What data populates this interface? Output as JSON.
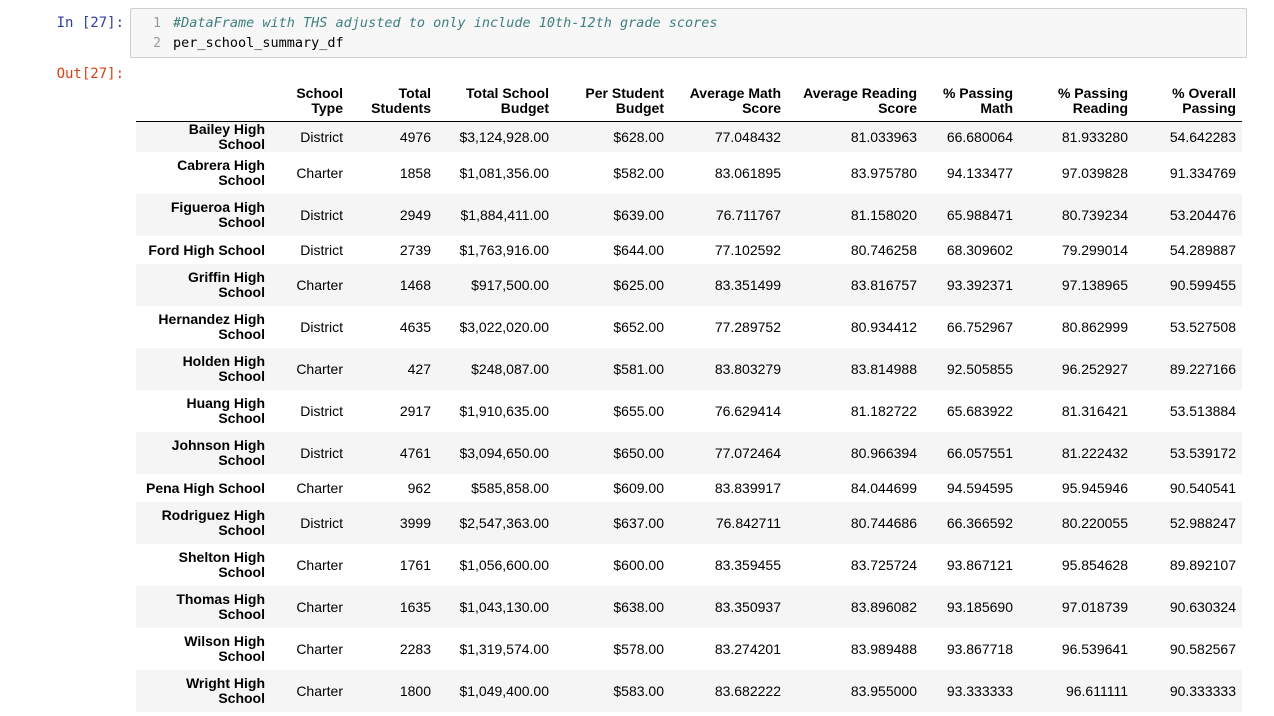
{
  "cell": {
    "in_prompt": "In [27]:",
    "out_prompt": "Out[27]:",
    "code_lines": [
      {
        "no": "1",
        "text": "#DataFrame with THS adjusted to only include 10th-12th grade scores",
        "comment": true
      },
      {
        "no": "2",
        "text": "per_school_summary_df",
        "comment": false
      }
    ]
  },
  "table": {
    "headers": [
      "",
      "School\nType",
      "Total\nStudents",
      "Total School\nBudget",
      "Per Student\nBudget",
      "Average Math\nScore",
      "Average Reading\nScore",
      "% Passing\nMath",
      "% Passing\nReading",
      "% Overall\nPassing"
    ],
    "rows": [
      {
        "name": "Bailey High School",
        "cells": [
          "District",
          "4976",
          "$3,124,928.00",
          "$628.00",
          "77.048432",
          "81.033963",
          "66.680064",
          "81.933280",
          "54.642283"
        ],
        "short": true
      },
      {
        "name": "Cabrera High\nSchool",
        "cells": [
          "Charter",
          "1858",
          "$1,081,356.00",
          "$582.00",
          "83.061895",
          "83.975780",
          "94.133477",
          "97.039828",
          "91.334769"
        ],
        "short": false
      },
      {
        "name": "Figueroa High\nSchool",
        "cells": [
          "District",
          "2949",
          "$1,884,411.00",
          "$639.00",
          "76.711767",
          "81.158020",
          "65.988471",
          "80.739234",
          "53.204476"
        ],
        "short": false
      },
      {
        "name": "Ford High School",
        "cells": [
          "District",
          "2739",
          "$1,763,916.00",
          "$644.00",
          "77.102592",
          "80.746258",
          "68.309602",
          "79.299014",
          "54.289887"
        ],
        "short": true
      },
      {
        "name": "Griffin High\nSchool",
        "cells": [
          "Charter",
          "1468",
          "$917,500.00",
          "$625.00",
          "83.351499",
          "83.816757",
          "93.392371",
          "97.138965",
          "90.599455"
        ],
        "short": false
      },
      {
        "name": "Hernandez High\nSchool",
        "cells": [
          "District",
          "4635",
          "$3,022,020.00",
          "$652.00",
          "77.289752",
          "80.934412",
          "66.752967",
          "80.862999",
          "53.527508"
        ],
        "short": false
      },
      {
        "name": "Holden High\nSchool",
        "cells": [
          "Charter",
          "427",
          "$248,087.00",
          "$581.00",
          "83.803279",
          "83.814988",
          "92.505855",
          "96.252927",
          "89.227166"
        ],
        "short": false
      },
      {
        "name": "Huang High\nSchool",
        "cells": [
          "District",
          "2917",
          "$1,910,635.00",
          "$655.00",
          "76.629414",
          "81.182722",
          "65.683922",
          "81.316421",
          "53.513884"
        ],
        "short": false
      },
      {
        "name": "Johnson High\nSchool",
        "cells": [
          "District",
          "4761",
          "$3,094,650.00",
          "$650.00",
          "77.072464",
          "80.966394",
          "66.057551",
          "81.222432",
          "53.539172"
        ],
        "short": false
      },
      {
        "name": "Pena High School",
        "cells": [
          "Charter",
          "962",
          "$585,858.00",
          "$609.00",
          "83.839917",
          "84.044699",
          "94.594595",
          "95.945946",
          "90.540541"
        ],
        "short": true
      },
      {
        "name": "Rodriguez High\nSchool",
        "cells": [
          "District",
          "3999",
          "$2,547,363.00",
          "$637.00",
          "76.842711",
          "80.744686",
          "66.366592",
          "80.220055",
          "52.988247"
        ],
        "short": false
      },
      {
        "name": "Shelton High\nSchool",
        "cells": [
          "Charter",
          "1761",
          "$1,056,600.00",
          "$600.00",
          "83.359455",
          "83.725724",
          "93.867121",
          "95.854628",
          "89.892107"
        ],
        "short": false
      },
      {
        "name": "Thomas High\nSchool",
        "cells": [
          "Charter",
          "1635",
          "$1,043,130.00",
          "$638.00",
          "83.350937",
          "83.896082",
          "93.185690",
          "97.018739",
          "90.630324"
        ],
        "short": false
      },
      {
        "name": "Wilson High\nSchool",
        "cells": [
          "Charter",
          "2283",
          "$1,319,574.00",
          "$578.00",
          "83.274201",
          "83.989488",
          "93.867718",
          "96.539641",
          "90.582567"
        ],
        "short": false
      },
      {
        "name": "Wright High\nSchool",
        "cells": [
          "Charter",
          "1800",
          "$1,049,400.00",
          "$583.00",
          "83.682222",
          "83.955000",
          "93.333333",
          "96.611111",
          "90.333333"
        ],
        "short": false
      }
    ]
  }
}
